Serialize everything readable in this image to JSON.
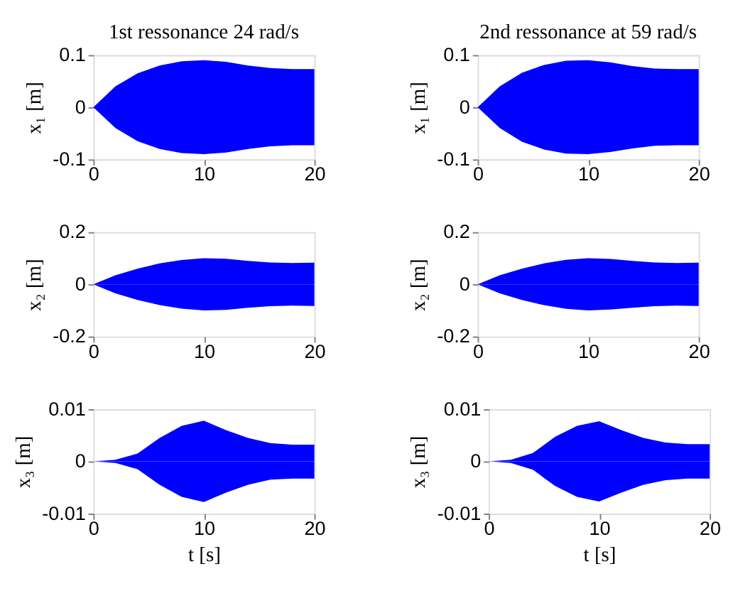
{
  "chart_data": [
    {
      "type": "area",
      "title": "1st ressonance 24 rad/s",
      "ylabel": "x₁ [m]",
      "x": [
        0,
        2,
        4,
        6,
        8,
        10,
        12,
        14,
        16,
        18,
        20
      ],
      "xlim": [
        0,
        20
      ],
      "xticks": [
        0,
        10,
        20
      ],
      "ylim": [
        -0.1,
        0.1
      ],
      "yticks": [
        -0.1,
        0,
        0.1
      ],
      "grid": false,
      "series": [
        {
          "color": "#0000ff",
          "values": [
            0,
            0.04,
            0.065,
            0.08,
            0.088,
            0.09,
            0.087,
            0.08,
            0.075,
            0.073,
            0.073
          ]
        },
        {
          "color": "#0000ff",
          "values": [
            0,
            -0.04,
            -0.065,
            -0.08,
            -0.088,
            -0.09,
            -0.087,
            -0.08,
            -0.075,
            -0.073,
            -0.073
          ]
        }
      ]
    },
    {
      "type": "area",
      "title": "2nd ressonance at 59 rad/s",
      "ylabel": "x₁ [m]",
      "x": [
        0,
        2,
        4,
        6,
        8,
        10,
        12,
        14,
        16,
        18,
        20
      ],
      "xlim": [
        0,
        20
      ],
      "xticks": [
        0,
        10,
        20
      ],
      "ylim": [
        -0.1,
        0.1
      ],
      "yticks": [
        -0.1,
        0,
        0.1
      ],
      "grid": false,
      "series": [
        {
          "color": "#0000ff",
          "values": [
            0,
            0.04,
            0.066,
            0.081,
            0.089,
            0.09,
            0.086,
            0.079,
            0.074,
            0.073,
            0.073
          ]
        },
        {
          "color": "#0000ff",
          "values": [
            0,
            -0.04,
            -0.066,
            -0.081,
            -0.089,
            -0.09,
            -0.086,
            -0.079,
            -0.074,
            -0.073,
            -0.073
          ]
        }
      ]
    },
    {
      "type": "area",
      "ylabel": "x₂ [m]",
      "x": [
        0,
        2,
        4,
        6,
        8,
        10,
        12,
        14,
        16,
        18,
        20
      ],
      "xlim": [
        0,
        20
      ],
      "xticks": [
        0,
        10,
        20
      ],
      "ylim": [
        -0.2,
        0.2
      ],
      "yticks": [
        -0.2,
        0,
        0.2
      ],
      "grid": false,
      "series": [
        {
          "color": "#0000ff",
          "values": [
            0,
            0.035,
            0.06,
            0.08,
            0.093,
            0.1,
            0.098,
            0.09,
            0.084,
            0.082,
            0.083
          ]
        },
        {
          "color": "#0000ff",
          "values": [
            0,
            -0.035,
            -0.06,
            -0.08,
            -0.093,
            -0.1,
            -0.098,
            -0.09,
            -0.084,
            -0.082,
            -0.083
          ]
        }
      ]
    },
    {
      "type": "area",
      "ylabel": "x₂ [m]",
      "x": [
        0,
        2,
        4,
        6,
        8,
        10,
        12,
        14,
        16,
        18,
        20
      ],
      "xlim": [
        0,
        20
      ],
      "xticks": [
        0,
        10,
        20
      ],
      "ylim": [
        -0.2,
        0.2
      ],
      "yticks": [
        -0.2,
        0,
        0.2
      ],
      "grid": false,
      "series": [
        {
          "color": "#0000ff",
          "values": [
            0,
            0.035,
            0.06,
            0.08,
            0.094,
            0.1,
            0.097,
            0.09,
            0.084,
            0.082,
            0.083
          ]
        },
        {
          "color": "#0000ff",
          "values": [
            0,
            -0.035,
            -0.06,
            -0.08,
            -0.094,
            -0.1,
            -0.097,
            -0.09,
            -0.084,
            -0.082,
            -0.083
          ]
        }
      ]
    },
    {
      "type": "area",
      "ylabel": "x₃ [m]",
      "xlabel": "t [s]",
      "x": [
        0,
        2,
        4,
        6,
        8,
        10,
        12,
        14,
        16,
        18,
        20
      ],
      "xlim": [
        0,
        20
      ],
      "xticks": [
        0,
        10,
        20
      ],
      "ylim": [
        -0.01,
        0.01
      ],
      "yticks": [
        -0.01,
        0,
        0.01
      ],
      "grid": false,
      "series": [
        {
          "color": "#0000ff",
          "values": [
            0,
            0.0003,
            0.0015,
            0.0045,
            0.0068,
            0.0078,
            0.006,
            0.0045,
            0.0035,
            0.0032,
            0.0032
          ]
        },
        {
          "color": "#0000ff",
          "values": [
            0,
            -0.0003,
            -0.0015,
            -0.0045,
            -0.0068,
            -0.0078,
            -0.006,
            -0.0045,
            -0.0035,
            -0.0033,
            -0.0033
          ]
        }
      ]
    },
    {
      "type": "area",
      "ylabel": "x₃ [m]",
      "xlabel": "t [s]",
      "x": [
        0,
        2,
        4,
        6,
        8,
        10,
        12,
        14,
        16,
        18,
        20
      ],
      "xlim": [
        0,
        20
      ],
      "xticks": [
        0,
        10,
        20
      ],
      "ylim": [
        -0.01,
        0.01
      ],
      "yticks": [
        -0.01,
        0,
        0.01
      ],
      "grid": false,
      "series": [
        {
          "color": "#0000ff",
          "values": [
            0,
            0.0003,
            0.0016,
            0.0047,
            0.0068,
            0.0077,
            0.006,
            0.0045,
            0.0036,
            0.0033,
            0.0033
          ]
        },
        {
          "color": "#0000ff",
          "values": [
            0,
            -0.0003,
            -0.0016,
            -0.0047,
            -0.0068,
            -0.0077,
            -0.006,
            -0.0045,
            -0.0036,
            -0.0033,
            -0.0033
          ]
        }
      ]
    }
  ]
}
